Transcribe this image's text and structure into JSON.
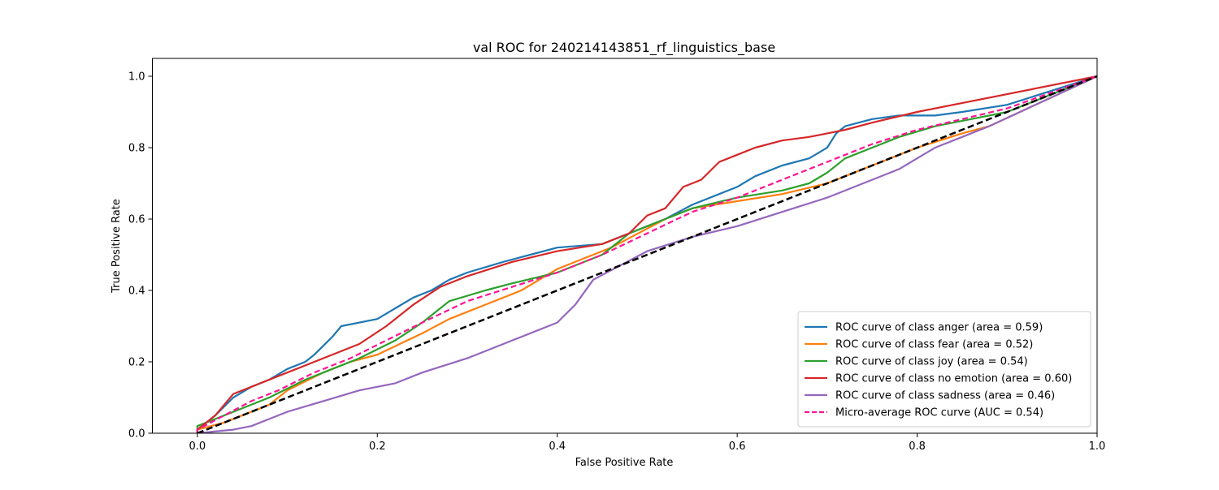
{
  "chart_data": {
    "type": "line",
    "title": "val ROC for 240214143851_rf_linguistics_base",
    "xlabel": "False Positive Rate",
    "ylabel": "True Positive Rate",
    "xlim": [
      -0.05,
      1.0
    ],
    "ylim": [
      0.0,
      1.05
    ],
    "xticks": [
      0.0,
      0.2,
      0.4,
      0.6,
      0.8,
      1.0
    ],
    "xtick_labels": [
      "0.0",
      "0.2",
      "0.4",
      "0.6",
      "0.8",
      "1.0"
    ],
    "yticks": [
      0.0,
      0.2,
      0.4,
      0.6,
      0.8,
      1.0
    ],
    "ytick_labels": [
      "0.0",
      "0.2",
      "0.4",
      "0.6",
      "0.8",
      "1.0"
    ],
    "grid": false,
    "legend_position": "lower-right",
    "series": [
      {
        "name": "ROC curve of class anger (area = 0.59)",
        "color": "#1f77b4",
        "dash": "solid",
        "x": [
          0.0,
          0.0,
          0.02,
          0.04,
          0.06,
          0.08,
          0.1,
          0.12,
          0.13,
          0.15,
          0.16,
          0.2,
          0.22,
          0.24,
          0.26,
          0.28,
          0.3,
          0.34,
          0.37,
          0.4,
          0.45,
          0.48,
          0.5,
          0.52,
          0.55,
          0.58,
          0.6,
          0.62,
          0.65,
          0.68,
          0.7,
          0.71,
          0.72,
          0.75,
          0.78,
          0.82,
          0.85,
          0.9,
          1.0
        ],
        "y": [
          0.0,
          0.01,
          0.05,
          0.1,
          0.13,
          0.15,
          0.18,
          0.2,
          0.22,
          0.27,
          0.3,
          0.32,
          0.35,
          0.38,
          0.4,
          0.43,
          0.45,
          0.48,
          0.5,
          0.52,
          0.53,
          0.56,
          0.58,
          0.6,
          0.64,
          0.67,
          0.69,
          0.72,
          0.75,
          0.77,
          0.8,
          0.84,
          0.86,
          0.88,
          0.89,
          0.89,
          0.9,
          0.92,
          1.0
        ]
      },
      {
        "name": "ROC curve of class fear (area = 0.52)",
        "color": "#ff7f0e",
        "dash": "solid",
        "x": [
          0.0,
          0.0,
          0.03,
          0.06,
          0.08,
          0.1,
          0.14,
          0.17,
          0.2,
          0.25,
          0.28,
          0.32,
          0.36,
          0.38,
          0.4,
          0.43,
          0.46,
          0.49,
          0.52,
          0.55,
          0.6,
          0.65,
          0.7,
          0.75,
          0.8,
          0.85,
          0.88,
          1.0
        ],
        "y": [
          0.0,
          0.01,
          0.03,
          0.06,
          0.08,
          0.12,
          0.17,
          0.2,
          0.22,
          0.28,
          0.32,
          0.36,
          0.4,
          0.43,
          0.46,
          0.49,
          0.52,
          0.56,
          0.6,
          0.63,
          0.65,
          0.67,
          0.7,
          0.75,
          0.8,
          0.84,
          0.86,
          1.0
        ]
      },
      {
        "name": "ROC curve of class joy (area = 0.54)",
        "color": "#2ca02c",
        "dash": "solid",
        "x": [
          0.0,
          0.0,
          0.04,
          0.08,
          0.12,
          0.15,
          0.18,
          0.22,
          0.25,
          0.28,
          0.32,
          0.35,
          0.4,
          0.45,
          0.48,
          0.52,
          0.55,
          0.6,
          0.65,
          0.68,
          0.7,
          0.72,
          0.75,
          0.78,
          0.82,
          0.86,
          0.9,
          1.0
        ],
        "y": [
          0.0,
          0.02,
          0.06,
          0.1,
          0.15,
          0.18,
          0.21,
          0.26,
          0.31,
          0.37,
          0.4,
          0.42,
          0.45,
          0.5,
          0.56,
          0.6,
          0.63,
          0.66,
          0.68,
          0.7,
          0.73,
          0.77,
          0.8,
          0.83,
          0.86,
          0.88,
          0.9,
          1.0
        ]
      },
      {
        "name": "ROC curve of class no emotion (area = 0.60)",
        "color": "#d62728",
        "dash": "solid",
        "x": [
          0.0,
          0.0,
          0.02,
          0.04,
          0.07,
          0.1,
          0.14,
          0.18,
          0.21,
          0.24,
          0.27,
          0.3,
          0.35,
          0.4,
          0.45,
          0.48,
          0.5,
          0.52,
          0.54,
          0.56,
          0.58,
          0.6,
          0.62,
          0.65,
          0.68,
          0.7,
          0.72,
          0.75,
          0.8,
          1.0
        ],
        "y": [
          0.0,
          0.01,
          0.05,
          0.11,
          0.14,
          0.17,
          0.21,
          0.25,
          0.3,
          0.36,
          0.41,
          0.44,
          0.48,
          0.51,
          0.53,
          0.56,
          0.61,
          0.63,
          0.69,
          0.71,
          0.76,
          0.78,
          0.8,
          0.82,
          0.83,
          0.84,
          0.85,
          0.87,
          0.9,
          1.0
        ]
      },
      {
        "name": "ROC curve of class sadness (area = 0.46)",
        "color": "#9467bd",
        "dash": "solid",
        "x": [
          0.0,
          0.0,
          0.04,
          0.06,
          0.08,
          0.1,
          0.14,
          0.18,
          0.22,
          0.25,
          0.3,
          0.35,
          0.4,
          0.42,
          0.44,
          0.47,
          0.5,
          0.55,
          0.6,
          0.65,
          0.7,
          0.75,
          0.78,
          0.8,
          0.82,
          0.85,
          0.88,
          1.0
        ],
        "y": [
          0.0,
          0.0,
          0.01,
          0.02,
          0.04,
          0.06,
          0.09,
          0.12,
          0.14,
          0.17,
          0.21,
          0.26,
          0.31,
          0.36,
          0.43,
          0.47,
          0.51,
          0.55,
          0.58,
          0.62,
          0.66,
          0.71,
          0.74,
          0.77,
          0.8,
          0.83,
          0.86,
          1.0
        ]
      },
      {
        "name": "Micro-average ROC curve (AUC = 0.54)",
        "color": "#ff1493",
        "dash": "dashed",
        "x": [
          0.0,
          0.0,
          0.03,
          0.06,
          0.09,
          0.13,
          0.17,
          0.21,
          0.25,
          0.3,
          0.35,
          0.4,
          0.45,
          0.5,
          0.55,
          0.6,
          0.65,
          0.7,
          0.75,
          0.8,
          0.85,
          0.9,
          1.0
        ],
        "y": [
          0.0,
          0.01,
          0.05,
          0.09,
          0.12,
          0.17,
          0.21,
          0.26,
          0.31,
          0.37,
          0.41,
          0.45,
          0.5,
          0.56,
          0.62,
          0.66,
          0.71,
          0.76,
          0.81,
          0.85,
          0.88,
          0.91,
          1.0
        ]
      },
      {
        "name": "",
        "color": "#000000",
        "dash": "chance",
        "x": [
          0.0,
          1.0
        ],
        "y": [
          0.0,
          1.0
        ]
      }
    ]
  }
}
